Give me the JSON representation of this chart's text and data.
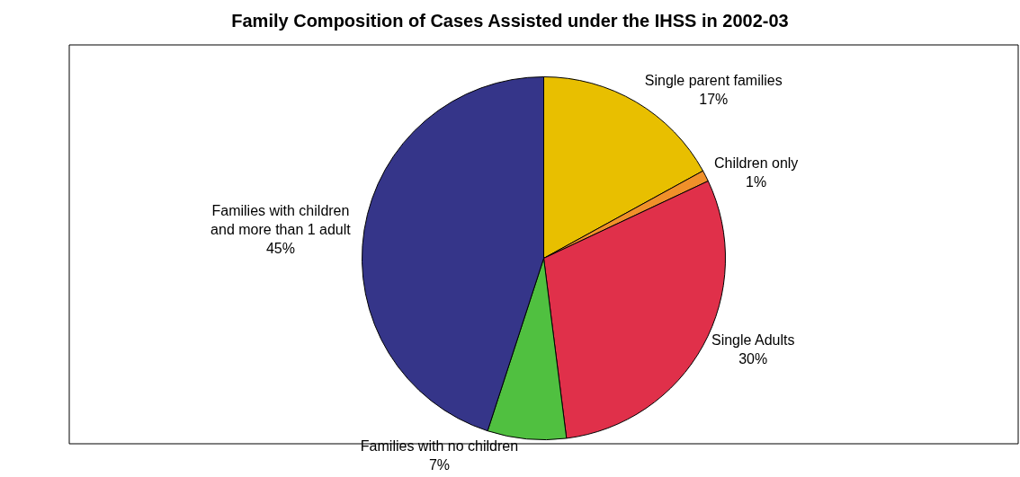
{
  "chart_data": {
    "type": "pie",
    "title": "Family Composition of Cases Assisted under the IHSS in 2002-03",
    "categories": [
      "Single parent families",
      "Children only",
      "Single Adults",
      "Families with no children",
      "Families with children\nand more than 1 adult"
    ],
    "values": [
      17,
      1,
      30,
      7,
      45
    ],
    "colors": [
      "#e8bf00",
      "#f0902a",
      "#e0304a",
      "#50c040",
      "#353589"
    ],
    "value_labels": [
      "17%",
      "1%",
      "30%",
      "7%",
      "45%"
    ],
    "legend": false
  }
}
